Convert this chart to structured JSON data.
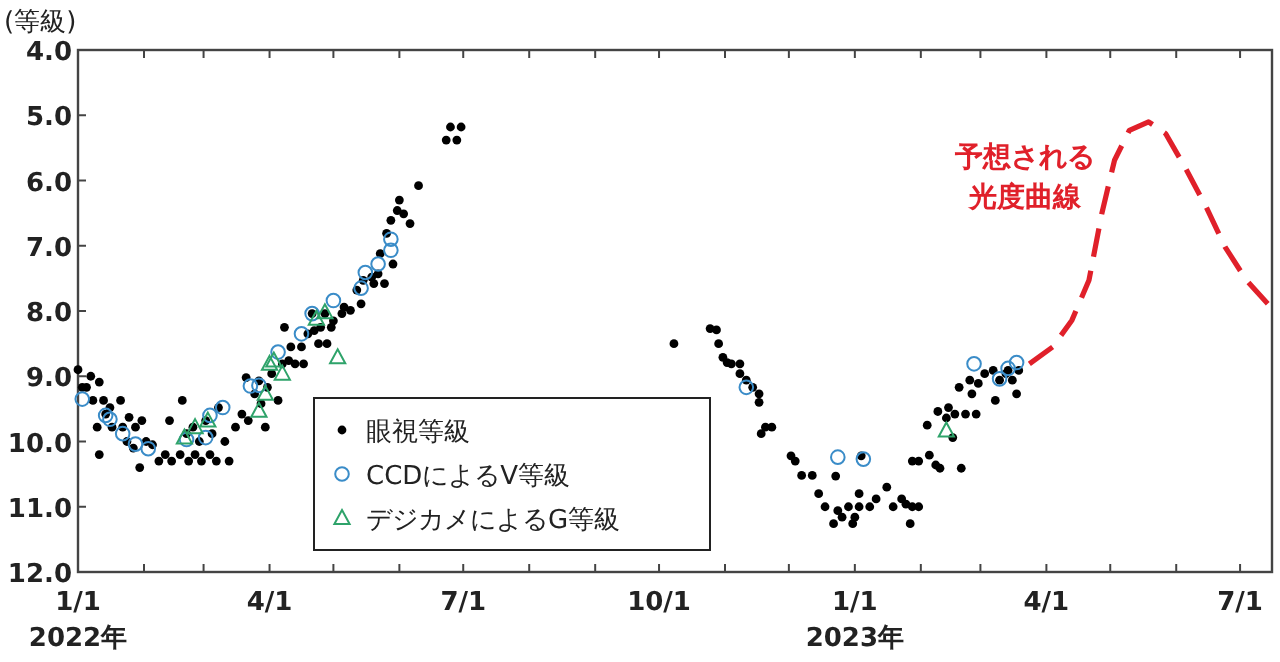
{
  "chart_data": {
    "type": "scatter",
    "ylabel": "(等級)",
    "xlim": [
      "2022-01-01",
      "2023-07-16"
    ],
    "ylim": [
      12,
      4
    ],
    "yticks": [
      {
        "value": 4,
        "label": "4.0"
      },
      {
        "value": 5,
        "label": "5.0"
      },
      {
        "value": 6,
        "label": "6.0"
      },
      {
        "value": 7,
        "label": "7.0"
      },
      {
        "value": 8,
        "label": "8.0"
      },
      {
        "value": 9,
        "label": "9.0"
      },
      {
        "value": 10,
        "label": "10.0"
      },
      {
        "value": 11,
        "label": "11.0"
      },
      {
        "value": 12,
        "label": "12.0"
      }
    ],
    "xticks": [
      {
        "value": "2022-01-01",
        "label": "1/1"
      },
      {
        "value": "2022-02-01",
        "label": null
      },
      {
        "value": "2022-03-01",
        "label": null
      },
      {
        "value": "2022-04-01",
        "label": "4/1"
      },
      {
        "value": "2022-05-01",
        "label": null
      },
      {
        "value": "2022-06-01",
        "label": null
      },
      {
        "value": "2022-07-01",
        "label": "7/1"
      },
      {
        "value": "2022-08-01",
        "label": null
      },
      {
        "value": "2022-09-01",
        "label": null
      },
      {
        "value": "2022-10-01",
        "label": "10/1"
      },
      {
        "value": "2022-11-01",
        "label": null
      },
      {
        "value": "2022-12-01",
        "label": null
      },
      {
        "value": "2023-01-01",
        "label": "1/1"
      },
      {
        "value": "2023-02-01",
        "label": null
      },
      {
        "value": "2023-03-01",
        "label": null
      },
      {
        "value": "2023-04-01",
        "label": "4/1"
      },
      {
        "value": "2023-05-01",
        "label": null
      },
      {
        "value": "2023-06-01",
        "label": null
      },
      {
        "value": "2023-07-01",
        "label": "7/1"
      }
    ],
    "legend": "bottom left",
    "grid": false,
    "annotations": [
      "2022年",
      "2023年",
      "予想される光度曲線"
    ],
    "series": [
      {
        "name": "眼視等級",
        "color": "#000000",
        "marker": "circle",
        "x": [
          "2022-01-01",
          "2022-01-03",
          "2022-01-05",
          "2022-01-07",
          "2022-01-08",
          "2022-01-11",
          "2022-01-10",
          "2022-01-11",
          "2022-01-13",
          "2022-01-14",
          "2022-01-16",
          "2022-01-17",
          "2022-01-21",
          "2022-01-22",
          "2022-01-24",
          "2022-01-25",
          "2022-01-27",
          "2022-01-28",
          "2022-01-30",
          "2022-01-31",
          "2022-02-02",
          "2022-02-05",
          "2022-02-08",
          "2022-02-11",
          "2022-02-13",
          "2022-02-14",
          "2022-02-18",
          "2022-02-19",
          "2022-02-21",
          "2022-02-22",
          "2022-02-24",
          "2022-02-25",
          "2022-02-27",
          "2022-02-28",
          "2022-03-02",
          "2022-03-04",
          "2022-03-05",
          "2022-03-07",
          "2022-03-08",
          "2022-03-11",
          "2022-03-13",
          "2022-03-16",
          "2022-03-19",
          "2022-03-21",
          "2022-03-22",
          "2022-03-25",
          "2022-03-27",
          "2022-03-28",
          "2022-03-30",
          "2022-03-31",
          "2022-04-02",
          "2022-04-05",
          "2022-04-07",
          "2022-04-08",
          "2022-04-10",
          "2022-04-11",
          "2022-04-13",
          "2022-04-16",
          "2022-04-17",
          "2022-04-19",
          "2022-04-21",
          "2022-04-22",
          "2022-04-24",
          "2022-04-25",
          "2022-04-27",
          "2022-04-28",
          "2022-04-30",
          "2022-05-01",
          "2022-05-05",
          "2022-05-06",
          "2022-05-09",
          "2022-05-12",
          "2022-05-14",
          "2022-05-15",
          "2022-05-19",
          "2022-05-20",
          "2022-05-22",
          "2022-05-23",
          "2022-05-25",
          "2022-05-26",
          "2022-05-28",
          "2022-05-29",
          "2022-05-31",
          "2022-06-01",
          "2022-06-03",
          "2022-06-06",
          "2022-06-10",
          "2022-06-23",
          "2022-06-25",
          "2022-06-28",
          "2022-06-30",
          "2022-10-08",
          "2022-10-25",
          "2022-10-28",
          "2022-10-29",
          "2022-10-31",
          "2022-11-02",
          "2022-11-04",
          "2022-11-08",
          "2022-11-08",
          "2022-11-11",
          "2022-11-14",
          "2022-11-17",
          "2022-11-17",
          "2022-11-18",
          "2022-11-20",
          "2022-11-23",
          "2022-12-02",
          "2022-12-04",
          "2022-12-07",
          "2022-12-12",
          "2022-12-15",
          "2022-12-18",
          "2022-12-22",
          "2022-12-23",
          "2022-12-24",
          "2022-12-26",
          "2022-12-29",
          "2022-12-31",
          "2023-01-01",
          "2023-01-03",
          "2023-01-04",
          "2023-01-03",
          "2023-01-08",
          "2023-01-11",
          "2023-01-16",
          "2023-01-19",
          "2023-01-23",
          "2023-01-25",
          "2023-01-27",
          "2023-01-28",
          "2023-01-31",
          "2023-01-28",
          "2023-01-31",
          "2023-02-04",
          "2023-02-05",
          "2023-02-08",
          "2023-02-09",
          "2023-02-10",
          "2023-02-13",
          "2023-02-14",
          "2023-02-16",
          "2023-02-17",
          "2023-02-19",
          "2023-02-20",
          "2023-02-22",
          "2023-02-24",
          "2023-02-25",
          "2023-02-27",
          "2023-02-28",
          "2023-03-03",
          "2023-03-07",
          "2023-03-08",
          "2023-03-10",
          "2023-03-13",
          "2023-03-14",
          "2023-03-16",
          "2023-03-18",
          "2023-03-19"
        ],
        "values": [
          8.9,
          9.17,
          9.17,
          9.0,
          9.37,
          9.09,
          9.78,
          10.2,
          9.37,
          9.58,
          9.48,
          9.78,
          9.37,
          9.78,
          10.0,
          9.63,
          10.1,
          9.78,
          10.4,
          9.68,
          10.0,
          10.05,
          10.3,
          10.2,
          9.68,
          10.3,
          10.2,
          9.37,
          9.88,
          10.3,
          9.78,
          10.2,
          10.0,
          10.3,
          9.68,
          10.2,
          9.88,
          10.3,
          9.48,
          10.0,
          10.3,
          9.78,
          9.58,
          9.02,
          9.68,
          9.27,
          9.07,
          9.42,
          9.78,
          9.17,
          8.96,
          9.37,
          8.81,
          8.25,
          8.76,
          8.55,
          8.81,
          8.55,
          8.81,
          8.35,
          8.04,
          8.3,
          8.5,
          8.25,
          8.04,
          8.5,
          8.25,
          8.15,
          8.04,
          7.94,
          7.99,
          7.68,
          7.89,
          7.53,
          7.48,
          7.58,
          7.43,
          7.12,
          7.58,
          6.81,
          6.61,
          7.28,
          6.46,
          6.3,
          6.51,
          6.66,
          6.08,
          5.38,
          5.18,
          5.38,
          5.18,
          8.5,
          8.27,
          8.29,
          8.5,
          8.71,
          8.79,
          8.81,
          8.81,
          8.96,
          9.06,
          9.17,
          9.27,
          9.4,
          9.88,
          9.78,
          9.78,
          10.22,
          10.3,
          10.52,
          10.52,
          10.8,
          11.0,
          11.26,
          10.53,
          11.06,
          11.16,
          11.0,
          11.26,
          11.16,
          11.0,
          10.22,
          10.8,
          11.0,
          10.88,
          10.7,
          11.0,
          10.88,
          10.96,
          11.26,
          11.0,
          11.0,
          10.3,
          10.3,
          9.75,
          10.21,
          10.36,
          9.54,
          10.41,
          9.64,
          9.48,
          9.94,
          9.58,
          9.17,
          10.41,
          9.58,
          9.06,
          9.27,
          9.58,
          9.11,
          8.96,
          8.91,
          9.37,
          9.06,
          8.96,
          8.91,
          9.06,
          9.27,
          8.91
        ]
      },
      {
        "name": "CCDによるV等級",
        "color": "#3a8cc8",
        "marker": "circle",
        "x": [
          "2022-01-03",
          "2022-01-14",
          "2022-01-16",
          "2022-01-22",
          "2022-01-28",
          "2022-02-03",
          "2022-02-21",
          "2022-03-02",
          "2022-03-04",
          "2022-03-10",
          "2022-03-23",
          "2022-03-27",
          "2022-04-05",
          "2022-04-16",
          "2022-04-21",
          "2022-05-01",
          "2022-05-14",
          "2022-05-16",
          "2022-05-22",
          "2022-05-28",
          "2022-05-28",
          "2022-11-11",
          "2022-12-24",
          "2023-01-05",
          "2023-02-26",
          "2023-03-10",
          "2023-03-14",
          "2023-03-18"
        ],
        "values": [
          9.35,
          9.6,
          9.66,
          9.88,
          10.04,
          10.11,
          9.97,
          9.94,
          9.6,
          9.48,
          9.15,
          9.14,
          8.63,
          8.35,
          8.04,
          7.84,
          7.65,
          7.41,
          7.28,
          7.07,
          6.9,
          9.17,
          10.24,
          10.27,
          8.81,
          9.04,
          8.88,
          8.79
        ]
      },
      {
        "name": "デジカメによるG等級",
        "color": "#2ea36a",
        "marker": "triangle",
        "x": [
          "2022-02-20",
          "2022-02-25",
          "2022-03-03",
          "2022-03-27",
          "2022-03-30",
          "2022-04-01",
          "2022-04-03",
          "2022-04-07",
          "2022-04-23",
          "2022-04-27",
          "2022-05-03",
          "2023-02-13"
        ],
        "values": [
          9.94,
          9.78,
          9.68,
          9.53,
          9.27,
          8.81,
          8.76,
          8.96,
          8.12,
          8.02,
          8.71,
          9.83
        ]
      },
      {
        "type": "line",
        "color": "#e0202a",
        "line_style": "dashed",
        "marker": "none",
        "x": [
          "2023-03-24",
          "2023-04-04",
          "2023-04-13",
          "2023-04-21",
          "2023-04-27",
          "2023-05-03",
          "2023-05-10",
          "2023-05-19",
          "2023-05-27",
          "2023-06-05",
          "2023-06-15",
          "2023-06-24",
          "2023-07-04",
          "2023-07-14"
        ],
        "values": [
          8.81,
          8.55,
          8.14,
          7.53,
          6.51,
          5.69,
          5.23,
          5.1,
          5.28,
          5.79,
          6.4,
          7.02,
          7.53,
          7.89
        ]
      }
    ]
  }
}
